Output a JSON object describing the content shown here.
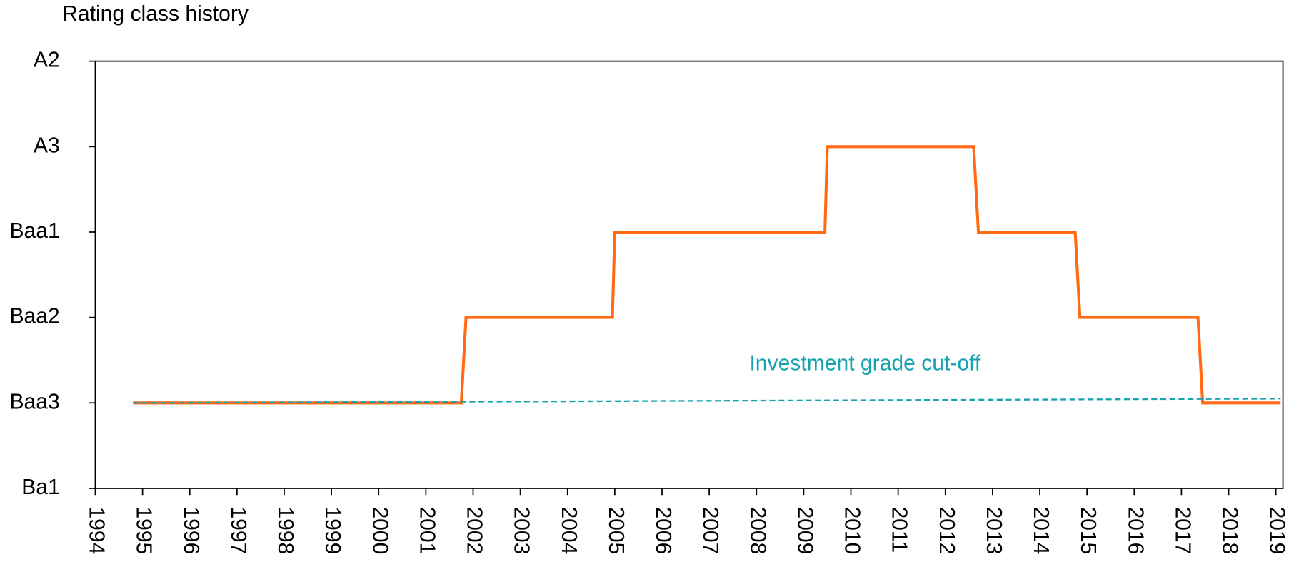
{
  "chart_data": {
    "type": "line",
    "title": "Rating class history",
    "annotations": [
      {
        "text": "Investment grade cut-off",
        "x": 2010.3,
        "y": 1.45,
        "color": "#17a2b0"
      }
    ],
    "series": [
      {
        "color": "#ff6a13",
        "style": "solid",
        "x": [
          1994.8,
          2001.75,
          2001.85,
          2004.95,
          2005.0,
          2009.45,
          2009.5,
          2012.6,
          2012.7,
          2014.75,
          2014.85,
          2017.35,
          2017.45,
          2019.1
        ],
        "values": [
          1,
          1,
          2,
          2,
          3,
          3,
          4,
          4,
          3,
          3,
          2,
          2,
          1,
          1
        ]
      },
      {
        "name": "Investment grade cut-off",
        "color": "#17a2b0",
        "style": "dashed",
        "x": [
          1994.8,
          2019.1
        ],
        "values": [
          1,
          1.05
        ]
      }
    ],
    "xlim": [
      1994,
      2019.15
    ],
    "xticks": [
      1994,
      1995,
      1996,
      1997,
      1998,
      1999,
      2000,
      2001,
      2002,
      2003,
      2004,
      2005,
      2006,
      2007,
      2008,
      2009,
      2010,
      2011,
      2012,
      2013,
      2014,
      2015,
      2016,
      2017,
      2018,
      2019
    ],
    "ylim": [
      0,
      5
    ],
    "yticks": [
      {
        "value": 0,
        "label": "Ba1"
      },
      {
        "value": 1,
        "label": "Baa3"
      },
      {
        "value": 2,
        "label": "Baa2"
      },
      {
        "value": 3,
        "label": "Baa1"
      },
      {
        "value": 4,
        "label": "A3"
      },
      {
        "value": 5,
        "label": "A2"
      }
    ],
    "grid": false
  }
}
